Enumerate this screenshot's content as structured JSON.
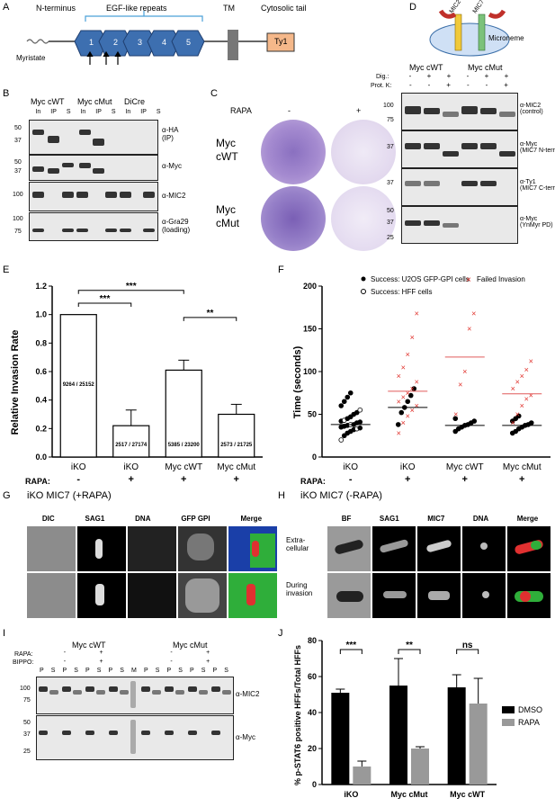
{
  "panels": {
    "A": "A",
    "B": "B",
    "C": "C",
    "D": "D",
    "E": "E",
    "F": "F",
    "G": "G",
    "H": "H",
    "I": "I",
    "J": "J"
  },
  "panelA": {
    "nterm": "N-terminus",
    "egf": "EGF-like repeats",
    "tm": "TM",
    "tail": "Cytosolic tail",
    "myr": "Myristate",
    "ty1": "Ty1",
    "repeats": [
      "1",
      "2",
      "3",
      "4",
      "5"
    ]
  },
  "panelB": {
    "groups": [
      "Myc cWT",
      "Myc cMut",
      "DiCre"
    ],
    "lanes": [
      "In",
      "IP",
      "S",
      "In",
      "IP",
      "S",
      "In",
      "IP",
      "S"
    ],
    "mw1": [
      "50",
      "37"
    ],
    "mw2": [
      "50",
      "37"
    ],
    "mw3": [
      "100"
    ],
    "mw4": [
      "100",
      "75"
    ],
    "labels": [
      "α-HA\n(IP)",
      "α-Myc",
      "α-MIC2",
      "α-Gra29\n(loading)"
    ]
  },
  "panelC": {
    "rapa": "RAPA",
    "minus": "-",
    "plus": "+",
    "rows": [
      "Myc\ncWT",
      "Myc\ncMut"
    ]
  },
  "panelD": {
    "mic2": "MIC2",
    "mic7": "MIC7",
    "microneme": "Microneme",
    "groups": [
      "Myc cWT",
      "Myc cMut"
    ],
    "dig": "Dig.:",
    "protk": "Prot. K:",
    "dig_vals": [
      "-",
      "+",
      "+",
      "-",
      "+",
      "+"
    ],
    "protk_vals": [
      "-",
      "-",
      "+",
      "-",
      "-",
      "+"
    ],
    "mw1": [
      "100",
      "75"
    ],
    "mw2": [
      "37"
    ],
    "mw3": [
      "37"
    ],
    "mw4": [
      "50",
      "37",
      "25"
    ],
    "labels": [
      "α-MIC2\n(control)",
      "α-Myc\n(MIC7 N-term)",
      "α-Ty1\n(MIC7 C-term)",
      "α-Myc\n(YnMyr PD)"
    ]
  },
  "panelE": {
    "ylabel": "Relative Invasion Rate",
    "rapa": "RAPA:",
    "sig": [
      "***",
      "***",
      "**"
    ],
    "chart_data": {
      "type": "bar",
      "categories": [
        "iKO",
        "iKO",
        "Myc cWT",
        "Myc cMut"
      ],
      "rapa": [
        "-",
        "+",
        "+",
        "+"
      ],
      "values": [
        1.0,
        0.22,
        0.61,
        0.3
      ],
      "errors": [
        0,
        0.11,
        0.07,
        0.07
      ],
      "bar_labels": [
        "9264 / 25152",
        "2517 / 27174",
        "5385 / 23200",
        "2573 / 21725"
      ],
      "ylim": [
        0,
        1.2
      ],
      "yticks": [
        "0.0",
        "0.2",
        "0.4",
        "0.6",
        "0.8",
        "1.0",
        "1.2"
      ]
    }
  },
  "panelF": {
    "ylabel": "Time (seconds)",
    "rapa": "RAPA:",
    "legend": [
      "Success: U2OS GFP-GPI cells",
      "Failed Invasion",
      "Success: HFF cells"
    ],
    "chart_data": {
      "type": "scatter",
      "categories": [
        "iKO",
        "iKO",
        "Myc cWT",
        "Myc cMut"
      ],
      "rapa": [
        "-",
        "+",
        "+",
        "+"
      ],
      "ylim": [
        0,
        200
      ],
      "yticks": [
        "0",
        "50",
        "100",
        "150",
        "200"
      ],
      "median_success": [
        38,
        58,
        37,
        37
      ],
      "median_fail": [
        null,
        77,
        117,
        74
      ]
    }
  },
  "panelG": {
    "title": "iKO MIC7 (+RAPA)",
    "cols": [
      "DIC",
      "SAG1",
      "DNA",
      "GFP GPI",
      "Merge"
    ]
  },
  "panelH": {
    "title": "iKO MIC7 (-RAPA)",
    "cols": [
      "BF",
      "SAG1",
      "MIC7",
      "DNA",
      "Merge"
    ],
    "rows": [
      "Extra-\ncellular",
      "During\ninvasion"
    ]
  },
  "panelI": {
    "groups": [
      "Myc cWT",
      "Myc cMut"
    ],
    "rapa": "RAPA:",
    "bippo": "BIPPO:",
    "rapa_vals": [
      "-",
      "+",
      "-",
      "+"
    ],
    "bippo_vals": [
      "-",
      "+",
      "-",
      "+"
    ],
    "lanes": [
      "P",
      "S",
      "P",
      "S",
      "P",
      "S",
      "P",
      "S",
      "M",
      "P",
      "S",
      "P",
      "S",
      "P",
      "S",
      "P",
      "S"
    ],
    "mw1": [
      "100",
      "75"
    ],
    "mw2": [
      "50",
      "37",
      "25"
    ],
    "labels": [
      "α-MIC2",
      "α-Myc"
    ]
  },
  "panelJ": {
    "ylabel": "% p-STAT6 positive HFFs/Total HFFs",
    "legend": [
      "DMSO",
      "RAPA"
    ],
    "sig": [
      "***",
      "**",
      "ns"
    ],
    "chart_data": {
      "type": "bar",
      "categories": [
        "iKO",
        "Myc cMut",
        "Myc cWT"
      ],
      "series": [
        {
          "name": "DMSO",
          "values": [
            51,
            55,
            54
          ],
          "errors": [
            2,
            15,
            7
          ]
        },
        {
          "name": "RAPA",
          "values": [
            10,
            20,
            45
          ],
          "errors": [
            3,
            1,
            14
          ]
        }
      ],
      "ylim": [
        0,
        80
      ],
      "yticks": [
        "0",
        "20",
        "40",
        "60",
        "80"
      ]
    }
  }
}
